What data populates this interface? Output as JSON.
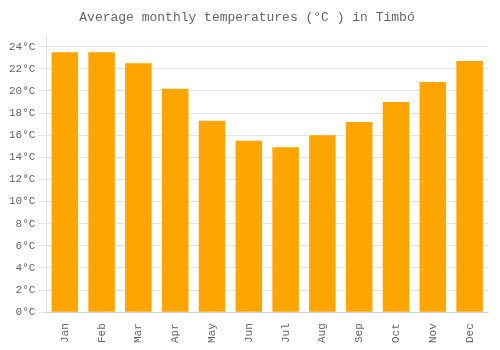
{
  "chart_data": {
    "type": "bar",
    "title": "Average monthly temperatures (°C ) in Timbó",
    "categories": [
      "Jan",
      "Feb",
      "Mar",
      "Apr",
      "May",
      "Jun",
      "Jul",
      "Aug",
      "Sep",
      "Oct",
      "Nov",
      "Dec"
    ],
    "values": [
      23.5,
      23.5,
      22.5,
      20.2,
      17.3,
      15.5,
      14.9,
      16.0,
      17.2,
      19.0,
      20.8,
      22.7
    ],
    "color": "#FFA500",
    "ylim": [
      0,
      25
    ],
    "yticks": [
      {
        "value": 0,
        "label": "0°C"
      },
      {
        "value": 2,
        "label": "2°C"
      },
      {
        "value": 4,
        "label": "4°C"
      },
      {
        "value": 6,
        "label": "6°C"
      },
      {
        "value": 8,
        "label": "8°C"
      },
      {
        "value": 10,
        "label": "10°C"
      },
      {
        "value": 12,
        "label": "12°C"
      },
      {
        "value": 14,
        "label": "14°C"
      },
      {
        "value": 16,
        "label": "16°C"
      },
      {
        "value": 18,
        "label": "18°C"
      },
      {
        "value": 20,
        "label": "20°C"
      },
      {
        "value": 22,
        "label": "22°C"
      },
      {
        "value": 24,
        "label": "24°C"
      }
    ],
    "grid": true
  }
}
